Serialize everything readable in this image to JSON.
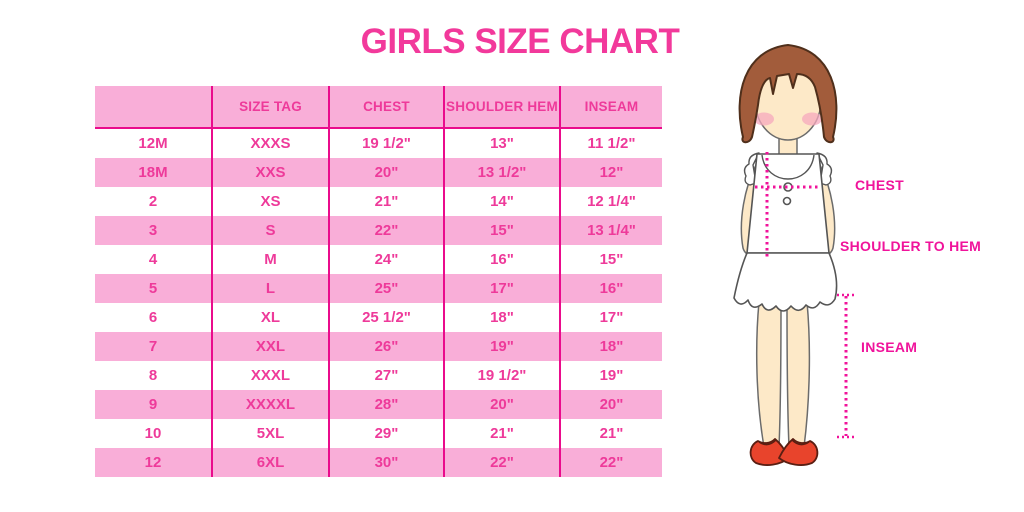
{
  "title": "GIRLS SIZE CHART",
  "colors": {
    "accent_pink": "#F2399B",
    "row_pink": "#F9AED8",
    "divider_magenta": "#EA0B8C",
    "shoe_red": "#E8442C",
    "hair_brown": "#A25C3B",
    "skin": "#FDE9C8"
  },
  "table": {
    "headers": [
      "",
      "SIZE TAG",
      "CHEST",
      "SHOULDER HEM",
      "INSEAM"
    ],
    "rows": [
      [
        "12M",
        "XXXS",
        "19 1/2\"",
        "13\"",
        "11 1/2\""
      ],
      [
        "18M",
        "XXS",
        "20\"",
        "13 1/2\"",
        "12\""
      ],
      [
        "2",
        "XS",
        "21\"",
        "14\"",
        "12 1/4\""
      ],
      [
        "3",
        "S",
        "22\"",
        "15\"",
        "13 1/4\""
      ],
      [
        "4",
        "M",
        "24\"",
        "16\"",
        "15\""
      ],
      [
        "5",
        "L",
        "25\"",
        "17\"",
        "16\""
      ],
      [
        "6",
        "XL",
        "25 1/2\"",
        "18\"",
        "17\""
      ],
      [
        "7",
        "XXL",
        "26\"",
        "19\"",
        "18\""
      ],
      [
        "8",
        "XXXL",
        "27\"",
        "19 1/2\"",
        "19\""
      ],
      [
        "9",
        "XXXXL",
        "28\"",
        "20\"",
        "20\""
      ],
      [
        "10",
        "5XL",
        "29\"",
        "21\"",
        "21\""
      ],
      [
        "12",
        "6XL",
        "30\"",
        "22\"",
        "22\""
      ]
    ]
  },
  "figure": {
    "chest_label": "CHEST",
    "shoulder_to_hem_label": "SHOULDER TO HEM",
    "inseam_label": "INSEAM"
  }
}
